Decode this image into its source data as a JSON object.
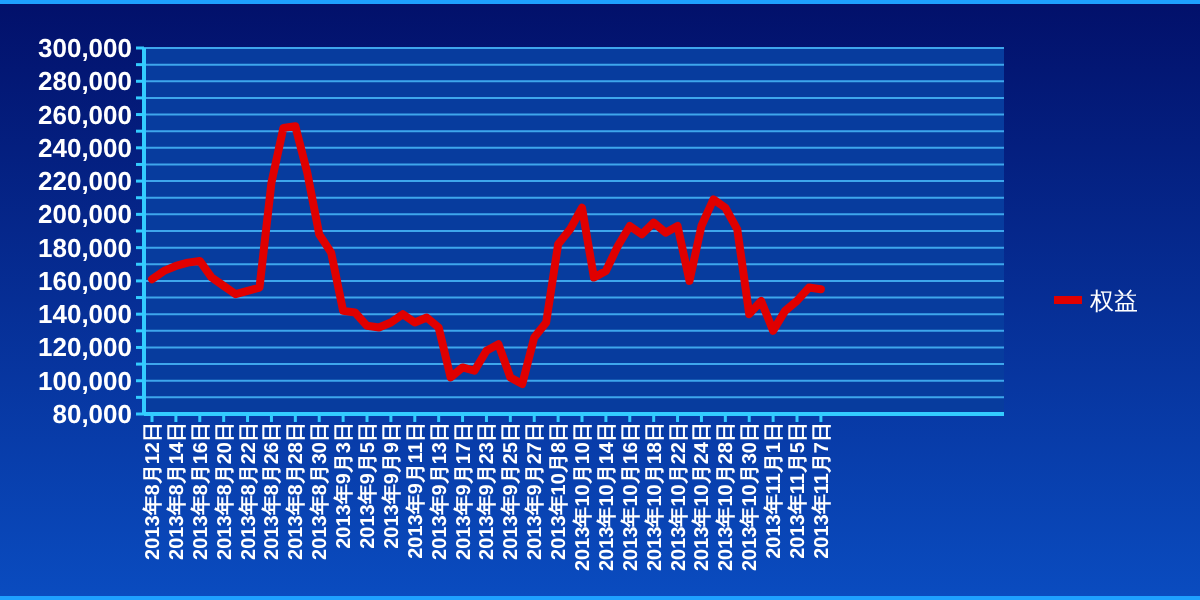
{
  "chart_data": {
    "type": "line",
    "categories": [
      "2013年8月12日",
      null,
      "2013年8月14日",
      null,
      "2013年8月16日",
      null,
      "2013年8月20日",
      null,
      "2013年8月22日",
      null,
      "2013年8月26日",
      null,
      "2013年8月28日",
      null,
      "2013年8月30日",
      null,
      "2013年9月3日",
      null,
      "2013年9月5日",
      null,
      "2013年9月9日",
      null,
      "2013年9月11日",
      null,
      "2013年9月13日",
      null,
      "2013年9月17日",
      null,
      "2013年9月23日",
      null,
      "2013年9月25日",
      null,
      "2013年9月27日",
      null,
      "2013年10月8日",
      null,
      "2013年10月10日",
      null,
      "2013年10月14日",
      null,
      "2013年10月16日",
      null,
      "2013年10月18日",
      null,
      "2013年10月22日",
      null,
      "2013年10月24日",
      null,
      "2013年10月28日",
      null,
      "2013年10月30日",
      null,
      "2013年11月1日",
      null,
      "2013年11月5日",
      null,
      "2013年11月7日"
    ],
    "series": [
      {
        "name": "权益",
        "color": "#e00000",
        "values": [
          161000,
          166000,
          169000,
          171000,
          172000,
          162000,
          157000,
          152000,
          154000,
          156000,
          219000,
          252000,
          253000,
          225000,
          188000,
          177000,
          142000,
          141000,
          133000,
          132000,
          135000,
          140000,
          135000,
          138000,
          132000,
          102000,
          108000,
          106000,
          118000,
          122000,
          102000,
          98000,
          126000,
          135000,
          182000,
          191000,
          204000,
          162000,
          166000,
          181000,
          193000,
          188000,
          195000,
          189000,
          193000,
          160000,
          193000,
          209000,
          204000,
          191000,
          140000,
          148000,
          130000,
          142000,
          148000,
          156000,
          155000
        ]
      }
    ],
    "ylim": [
      80000,
      300000
    ],
    "yticks": [
      {
        "value": 80000,
        "label": "80,000"
      },
      {
        "value": 90000,
        "label": null
      },
      {
        "value": 100000,
        "label": "100,000"
      },
      {
        "value": 110000,
        "label": null
      },
      {
        "value": 120000,
        "label": "120,000"
      },
      {
        "value": 130000,
        "label": null
      },
      {
        "value": 140000,
        "label": "140,000"
      },
      {
        "value": 150000,
        "label": null
      },
      {
        "value": 160000,
        "label": "160,000"
      },
      {
        "value": 170000,
        "label": null
      },
      {
        "value": 180000,
        "label": "180,000"
      },
      {
        "value": 190000,
        "label": null
      },
      {
        "value": 200000,
        "label": "200,000"
      },
      {
        "value": 210000,
        "label": null
      },
      {
        "value": 220000,
        "label": "220,000"
      },
      {
        "value": 230000,
        "label": null
      },
      {
        "value": 240000,
        "label": "240,000"
      },
      {
        "value": 250000,
        "label": null
      },
      {
        "value": 260000,
        "label": "260,000"
      },
      {
        "value": 270000,
        "label": null
      },
      {
        "value": 280000,
        "label": "280,000"
      },
      {
        "value": 290000,
        "label": null
      },
      {
        "value": 300000,
        "label": "300,000"
      }
    ],
    "grid": "y",
    "legend": "right",
    "marker": "none",
    "line_style": "solid"
  }
}
